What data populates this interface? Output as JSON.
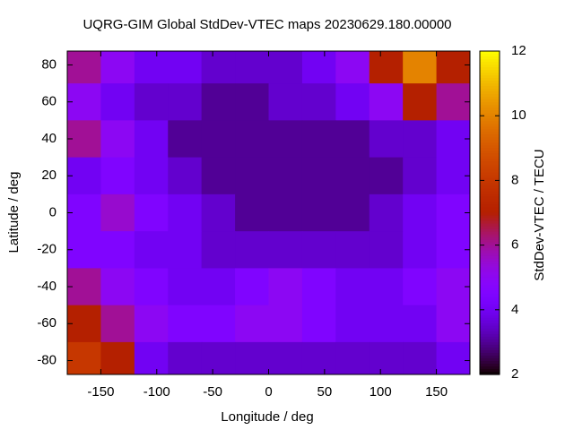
{
  "chart_data": {
    "type": "heatmap",
    "title": "UQRG-GIM Global StdDev-VTEC maps 20230629.180.00000",
    "x_label": "Longitude / deg",
    "y_label": "Latitude / deg",
    "colorbar_label": "StdDev-VTEC / TECU",
    "x": [
      -165,
      -135,
      -105,
      -75,
      -45,
      -15,
      15,
      45,
      75,
      105,
      135,
      165
    ],
    "y": [
      80,
      60,
      40,
      20,
      0,
      -20,
      -40,
      -60,
      -80
    ],
    "z": [
      [
        6,
        5,
        4,
        4,
        3.5,
        3.5,
        3.5,
        4,
        5,
        7,
        10,
        7
      ],
      [
        5,
        4,
        3.5,
        3.5,
        3,
        3,
        3.5,
        3.5,
        4,
        5,
        7,
        6
      ],
      [
        6,
        5,
        4,
        3,
        3,
        3,
        3,
        3,
        3,
        3.5,
        3.5,
        4
      ],
      [
        4,
        4.5,
        4,
        3.5,
        3,
        3,
        3,
        3,
        3,
        3,
        3.5,
        4
      ],
      [
        4.5,
        5.5,
        4.5,
        4,
        3.5,
        3,
        3,
        3,
        3,
        3.5,
        4,
        4.5
      ],
      [
        4.5,
        4.5,
        4,
        4,
        3.5,
        3.5,
        3.5,
        3.5,
        3.5,
        3.5,
        4,
        4.5
      ],
      [
        6,
        5,
        4.5,
        4,
        4,
        4.5,
        5,
        4.5,
        4,
        4,
        4.5,
        5
      ],
      [
        7,
        6,
        5,
        4.5,
        4.5,
        5,
        5,
        4.5,
        4,
        4,
        4,
        5
      ],
      [
        8,
        7,
        4,
        3.5,
        3.5,
        3.5,
        3.5,
        3.5,
        3.5,
        3.5,
        3.5,
        4
      ]
    ],
    "xlim": [
      -180,
      180
    ],
    "ylim": [
      -87.5,
      87.5
    ],
    "xticks": [
      -150,
      -100,
      -50,
      0,
      50,
      100,
      150
    ],
    "yticks": [
      -80,
      -60,
      -40,
      -20,
      0,
      20,
      40,
      60,
      80
    ],
    "zlim": [
      2,
      12
    ],
    "zticks": [
      2,
      4,
      6,
      8,
      10,
      12
    ]
  }
}
